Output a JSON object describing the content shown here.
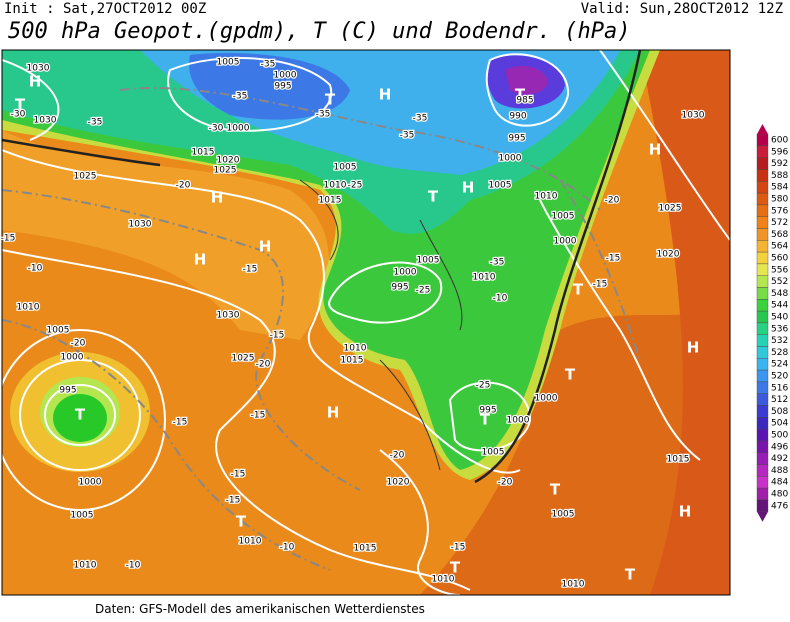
{
  "header": {
    "init": "Init : Sat,27OCT2012 00Z",
    "valid": "Valid: Sun,28OCT2012 12Z",
    "title": "500 hPa Geopot.(gpdm), T (C) und Bodendr. (hPa)"
  },
  "footer": "Daten: GFS-Modell des amerikanischen Wetterdienstes",
  "colorbar": {
    "labels": [
      600,
      596,
      592,
      588,
      584,
      580,
      576,
      572,
      568,
      564,
      560,
      556,
      552,
      548,
      544,
      540,
      536,
      532,
      528,
      524,
      520,
      516,
      512,
      508,
      504,
      500,
      496,
      492,
      488,
      484,
      480,
      476
    ],
    "colors": [
      "#b4004b",
      "#c81e3c",
      "#b41e1e",
      "#c83214",
      "#d24614",
      "#dc5a14",
      "#e66e14",
      "#f08218",
      "#f09628",
      "#f5b432",
      "#f5d23c",
      "#e6e650",
      "#b4e650",
      "#78dc46",
      "#3cd23c",
      "#28c850",
      "#28d282",
      "#28d2b4",
      "#32c8dc",
      "#3cb4f0",
      "#3c96f0",
      "#3c78e6",
      "#3c5adc",
      "#3c3cd2",
      "#3c28be",
      "#5a14b4",
      "#7814aa",
      "#961eb4",
      "#b428be",
      "#c832c8",
      "#a01eaa",
      "#641478"
    ]
  },
  "map_labels": [
    "H",
    "1030",
    "T",
    "-30",
    "1030",
    "-35",
    "1005",
    "-35",
    "1000",
    "995",
    "-35",
    "T",
    "H",
    "-35",
    "1000",
    "-30",
    "1015",
    "1020",
    "1025",
    "1005",
    "-35",
    "-35",
    "1010",
    "-25",
    "1015",
    "T",
    "H",
    "1005",
    "1000",
    "995",
    "T",
    "985",
    "990",
    "1030",
    "H",
    "-20",
    "1025",
    "1010",
    "1005",
    "1000",
    "1020",
    "-15",
    "T",
    "-15",
    "H",
    "1025",
    "-20",
    "H",
    "1030",
    "H",
    "H",
    "-15",
    "-10",
    "-15",
    "1010",
    "1030",
    "-15",
    "1025",
    "-20",
    "1005",
    "-20",
    "1000",
    "995",
    "T",
    "-15",
    "H",
    "-15",
    "1005",
    "1000",
    "995",
    "-25",
    "1010",
    "-35",
    "-10",
    "1010",
    "1015",
    "-20",
    "1020",
    "1000",
    "-15",
    "-15",
    "1005",
    "T",
    "1010",
    "-10",
    "1015",
    "-15",
    "1010",
    "-10",
    "1010",
    "T",
    "1010",
    "T",
    "995",
    "1000",
    "1005",
    "1000",
    "-25",
    "T",
    "T",
    "T",
    "1005",
    "H",
    "1015",
    "-20"
  ]
}
